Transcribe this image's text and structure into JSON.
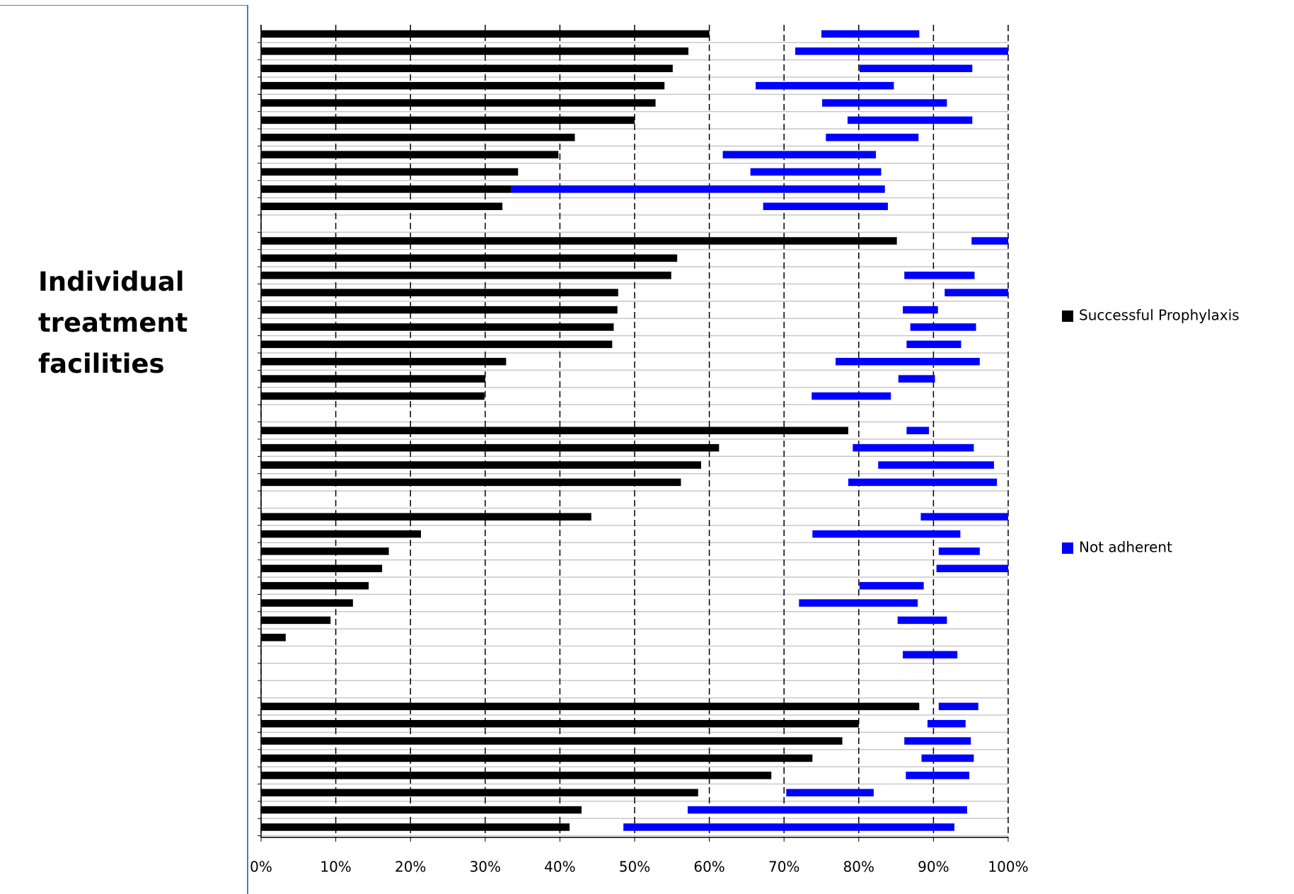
{
  "chart_data": {
    "type": "range-bar",
    "ylabel": "Individual treatment facilities",
    "categories": [
      null,
      null,
      null,
      null,
      null,
      null,
      null,
      null,
      null,
      null,
      null,
      null,
      null,
      null,
      null,
      null,
      null,
      null,
      null,
      null,
      null,
      null,
      null,
      null,
      null,
      null,
      null,
      null,
      null,
      null,
      null,
      null,
      null,
      null,
      null,
      null,
      null,
      null,
      null,
      null,
      null,
      null,
      null,
      null,
      null,
      null,
      null
    ],
    "series": [
      {
        "name": "Successful Prophylaxis",
        "color": "#000000",
        "values": [
          60,
          57.2,
          55.1,
          54,
          52.8,
          50,
          42,
          39.8,
          34.4,
          33.5,
          32.3,
          null,
          85.1,
          55.7,
          54.9,
          47.8,
          47.7,
          47.2,
          47,
          32.8,
          30,
          29.9,
          null,
          78.6,
          61.3,
          58.9,
          56.2,
          null,
          44.2,
          21.4,
          17.1,
          16.2,
          14.4,
          12.3,
          9.3,
          3.3,
          0,
          null,
          null,
          88.1,
          80,
          77.8,
          73.8,
          68.3,
          58.5,
          42.9,
          41.3
        ]
      },
      {
        "name": "Not adherent",
        "color": "#0000ff",
        "values": [
          [
            75,
            88.1
          ],
          [
            71.5,
            100
          ],
          [
            80.1,
            95.2
          ],
          [
            66.2,
            84.7
          ],
          [
            75.1,
            91.8
          ],
          [
            78.5,
            95.2
          ],
          [
            75.6,
            88
          ],
          [
            61.8,
            82.3
          ],
          [
            65.5,
            83
          ],
          [
            33.5,
            83.5
          ],
          [
            67.2,
            83.9
          ],
          null,
          [
            95.1,
            100
          ],
          null,
          [
            86.1,
            95.5
          ],
          [
            91.5,
            100
          ],
          [
            85.9,
            90.6
          ],
          [
            86.9,
            95.7
          ],
          [
            86.4,
            93.7
          ],
          [
            76.9,
            96.2
          ],
          [
            85.3,
            90.2
          ],
          [
            73.7,
            84.3
          ],
          null,
          [
            86.4,
            89.4
          ],
          [
            79.2,
            95.4
          ],
          [
            82.6,
            98.1
          ],
          [
            78.6,
            98.5
          ],
          null,
          [
            88.3,
            100
          ],
          [
            73.8,
            93.6
          ],
          [
            90.7,
            96.2
          ],
          [
            90.4,
            100
          ],
          [
            80.1,
            88.7
          ],
          [
            72,
            87.9
          ],
          [
            85.2,
            91.8
          ],
          null,
          [
            85.9,
            93.2
          ],
          null,
          null,
          [
            90.7,
            96
          ],
          [
            89.2,
            94.3
          ],
          [
            86.1,
            95
          ],
          [
            88.4,
            95.4
          ],
          [
            86.3,
            94.8
          ],
          [
            70.3,
            82
          ],
          [
            57.1,
            94.5
          ],
          [
            48.5,
            92.8
          ]
        ]
      }
    ],
    "xlim": [
      0,
      100
    ],
    "xticks": [
      {
        "value": 0,
        "label": "0%"
      },
      {
        "value": 10,
        "label": "10%"
      },
      {
        "value": 20,
        "label": "20%"
      },
      {
        "value": 30,
        "label": "30%"
      },
      {
        "value": 40,
        "label": "40%"
      },
      {
        "value": 50,
        "label": "50%"
      },
      {
        "value": 60,
        "label": "60%"
      },
      {
        "value": 70,
        "label": "70%"
      },
      {
        "value": 80,
        "label": "80%"
      },
      {
        "value": 90,
        "label": "90%"
      },
      {
        "value": 100,
        "label": "100%"
      }
    ],
    "grid": true
  }
}
